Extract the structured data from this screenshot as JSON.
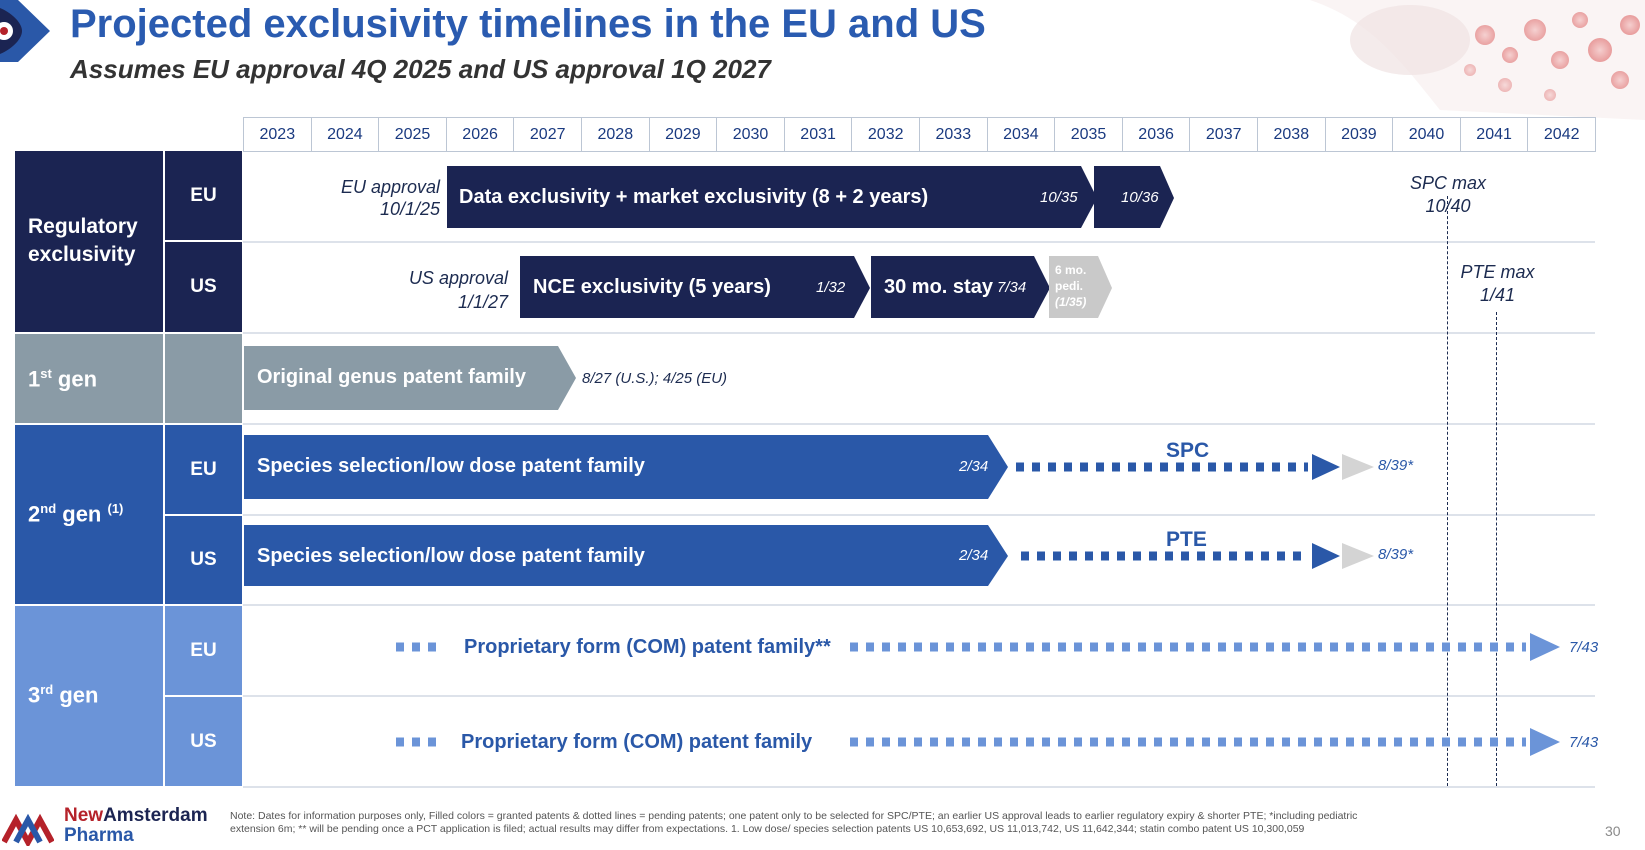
{
  "header": {
    "title": "Projected exclusivity timelines in the EU and US",
    "subtitle": "Assumes EU approval 4Q 2025 and US approval 1Q 2027"
  },
  "years": [
    "2023",
    "2024",
    "2025",
    "2026",
    "2027",
    "2028",
    "2029",
    "2030",
    "2031",
    "2032",
    "2033",
    "2034",
    "2035",
    "2036",
    "2037",
    "2038",
    "2039",
    "2040",
    "2041",
    "2042"
  ],
  "rows": {
    "regulatory": {
      "label_line1": "Regulatory",
      "label_line2": "exclusivity",
      "eu": "EU",
      "us": "US"
    },
    "gen1": {
      "label": "1",
      "sup": "st",
      "rest": " gen"
    },
    "gen2": {
      "label": "2",
      "sup": "nd",
      "rest": " gen ",
      "footnote_mark": "(1)",
      "eu": "EU",
      "us": "US"
    },
    "gen3": {
      "label": "3",
      "sup": "rd",
      "rest": " gen",
      "eu": "EU",
      "us": "US"
    }
  },
  "bars": {
    "eu_approval_line1": "EU approval",
    "eu_approval_line2": "10/1/25",
    "eu_data_excl": "Data exclusivity + market exclusivity (8 + 2 years)",
    "eu_data_excl_end": "10/35",
    "eu_extra_end": "10/36",
    "spc_max_line1": "SPC max",
    "spc_max_line2": "10/40",
    "us_approval_line1": "US approval",
    "us_approval_line2": "1/1/27",
    "us_nce": "NCE exclusivity (5 years)",
    "us_nce_end": "1/32",
    "us_stay": "30 mo. stay",
    "us_stay_end": "7/34",
    "us_pedi_line1": "6 mo.",
    "us_pedi_line2": "pedi.",
    "us_pedi_line3": "(1/35)",
    "pte_max_line1": "PTE max",
    "pte_max_line2": "1/41",
    "gen1_bar": "Original genus patent family",
    "gen1_end": "8/27 (U.S.); 4/25 (EU)",
    "gen2_eu_bar": "Species selection/low dose patent family",
    "gen2_eu_end": "2/34",
    "gen2_eu_ext": "SPC",
    "gen2_eu_ext_end": "8/39*",
    "gen2_us_bar": "Species selection/low dose patent family",
    "gen2_us_end": "2/34",
    "gen2_us_ext": "PTE",
    "gen2_us_ext_end": "8/39*",
    "gen3_eu_bar": "Proprietary form (COM) patent family**",
    "gen3_eu_end": "7/43",
    "gen3_us_bar": "Proprietary form (COM) patent family",
    "gen3_us_end": "7/43"
  },
  "footer": {
    "note_line1": "Note: Dates for information purposes only, Filled colors = granted patents & dotted lines = pending patents; one patent only to be selected for SPC/PTE; an earlier US approval leads to earlier regulatory expiry & shorter PTE; *including pediatric",
    "note_line2": "extension 6m; ** will be pending once a PCT application is filed; actual results may differ from expectations. 1. Low dose/ species selection patents US 10,653,692, US 11,013,742, US 11,642,344; statin combo patent US 10,300,059",
    "brand_part1": "New",
    "brand_part2": "Amsterdam",
    "brand_line2": "Pharma",
    "page_number": "30"
  },
  "colors": {
    "navy": "#1b2452",
    "gray": "#8a9ba6",
    "blue": "#2a58a8",
    "lightblue": "#6b94d8",
    "lightgray": "#c9c9c9"
  }
}
